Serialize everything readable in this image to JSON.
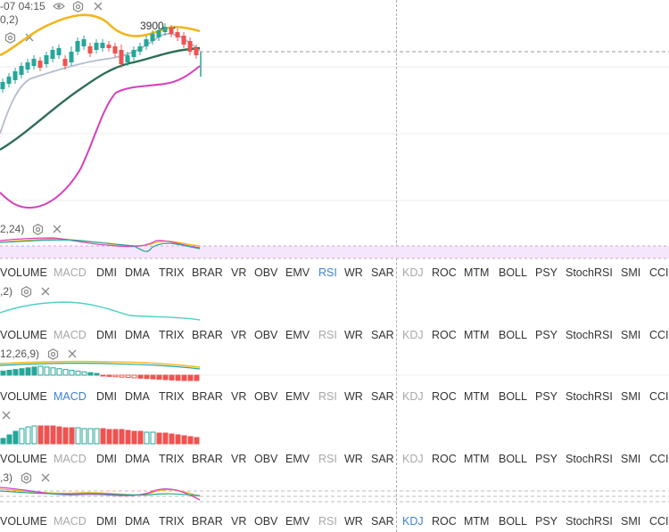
{
  "header": {
    "time_fragment": "-07 04:15",
    "main_indicator_params": "0,2)"
  },
  "main_chart": {
    "high_marker": "3900",
    "arrow": "→"
  },
  "colors": {
    "candle_up": "#26a69a",
    "candle_down": "#ef5350",
    "boll_upper": "#f2b619",
    "boll_mid": "#2e6e55",
    "ma_gray": "#b5bcd0",
    "ma_magenta": "#d63fbf",
    "tab_active": "#3b82d6",
    "tab_dim": "#a8a8a8"
  },
  "indicator_panes": [
    {
      "params": "2,24)"
    },
    {
      "params": ",2)"
    },
    {
      "params": "12,26,9)"
    },
    {
      "params": ""
    },
    {
      "params": ",3)"
    }
  ],
  "tab_rows": [
    {
      "active": "RSI",
      "tabs": [
        "VOLUME",
        "MACD",
        "DMI",
        "DMA",
        "TRIX",
        "BRAR",
        "VR",
        "OBV",
        "EMV",
        "RSI",
        "WR",
        "SAR",
        "KDJ",
        "ROC",
        "MTM",
        "BOLL",
        "PSY",
        "StochRSI",
        "SMI",
        "CCI"
      ],
      "dimmed": [
        "MACD",
        "KDJ"
      ]
    },
    {
      "active": "",
      "tabs": [
        "VOLUME",
        "MACD",
        "DMI",
        "DMA",
        "TRIX",
        "BRAR",
        "VR",
        "OBV",
        "EMV",
        "RSI",
        "WR",
        "SAR",
        "KDJ",
        "ROC",
        "MTM",
        "BOLL",
        "PSY",
        "StochRSI",
        "SMI",
        "CCI"
      ],
      "dimmed": [
        "MACD",
        "RSI",
        "KDJ"
      ]
    },
    {
      "active": "MACD",
      "tabs": [
        "VOLUME",
        "MACD",
        "DMI",
        "DMA",
        "TRIX",
        "BRAR",
        "VR",
        "OBV",
        "EMV",
        "RSI",
        "WR",
        "SAR",
        "KDJ",
        "ROC",
        "MTM",
        "BOLL",
        "PSY",
        "StochRSI",
        "SMI",
        "CCI"
      ],
      "dimmed": [
        "RSI",
        "KDJ"
      ]
    },
    {
      "active": "",
      "tabs": [
        "VOLUME",
        "MACD",
        "DMI",
        "DMA",
        "TRIX",
        "BRAR",
        "VR",
        "OBV",
        "EMV",
        "RSI",
        "WR",
        "SAR",
        "KDJ",
        "ROC",
        "MTM",
        "BOLL",
        "PSY",
        "StochRSI",
        "SMI",
        "CCI"
      ],
      "dimmed": [
        "MACD",
        "RSI",
        "KDJ"
      ]
    },
    {
      "active": "KDJ",
      "tabs": [
        "VOLUME",
        "MACD",
        "DMI",
        "DMA",
        "TRIX",
        "BRAR",
        "VR",
        "OBV",
        "EMV",
        "RSI",
        "WR",
        "SAR",
        "KDJ",
        "ROC",
        "MTM",
        "BOLL",
        "PSY",
        "StochRSI",
        "SMI",
        "CCI"
      ],
      "dimmed": [
        "MACD",
        "RSI"
      ]
    }
  ]
}
